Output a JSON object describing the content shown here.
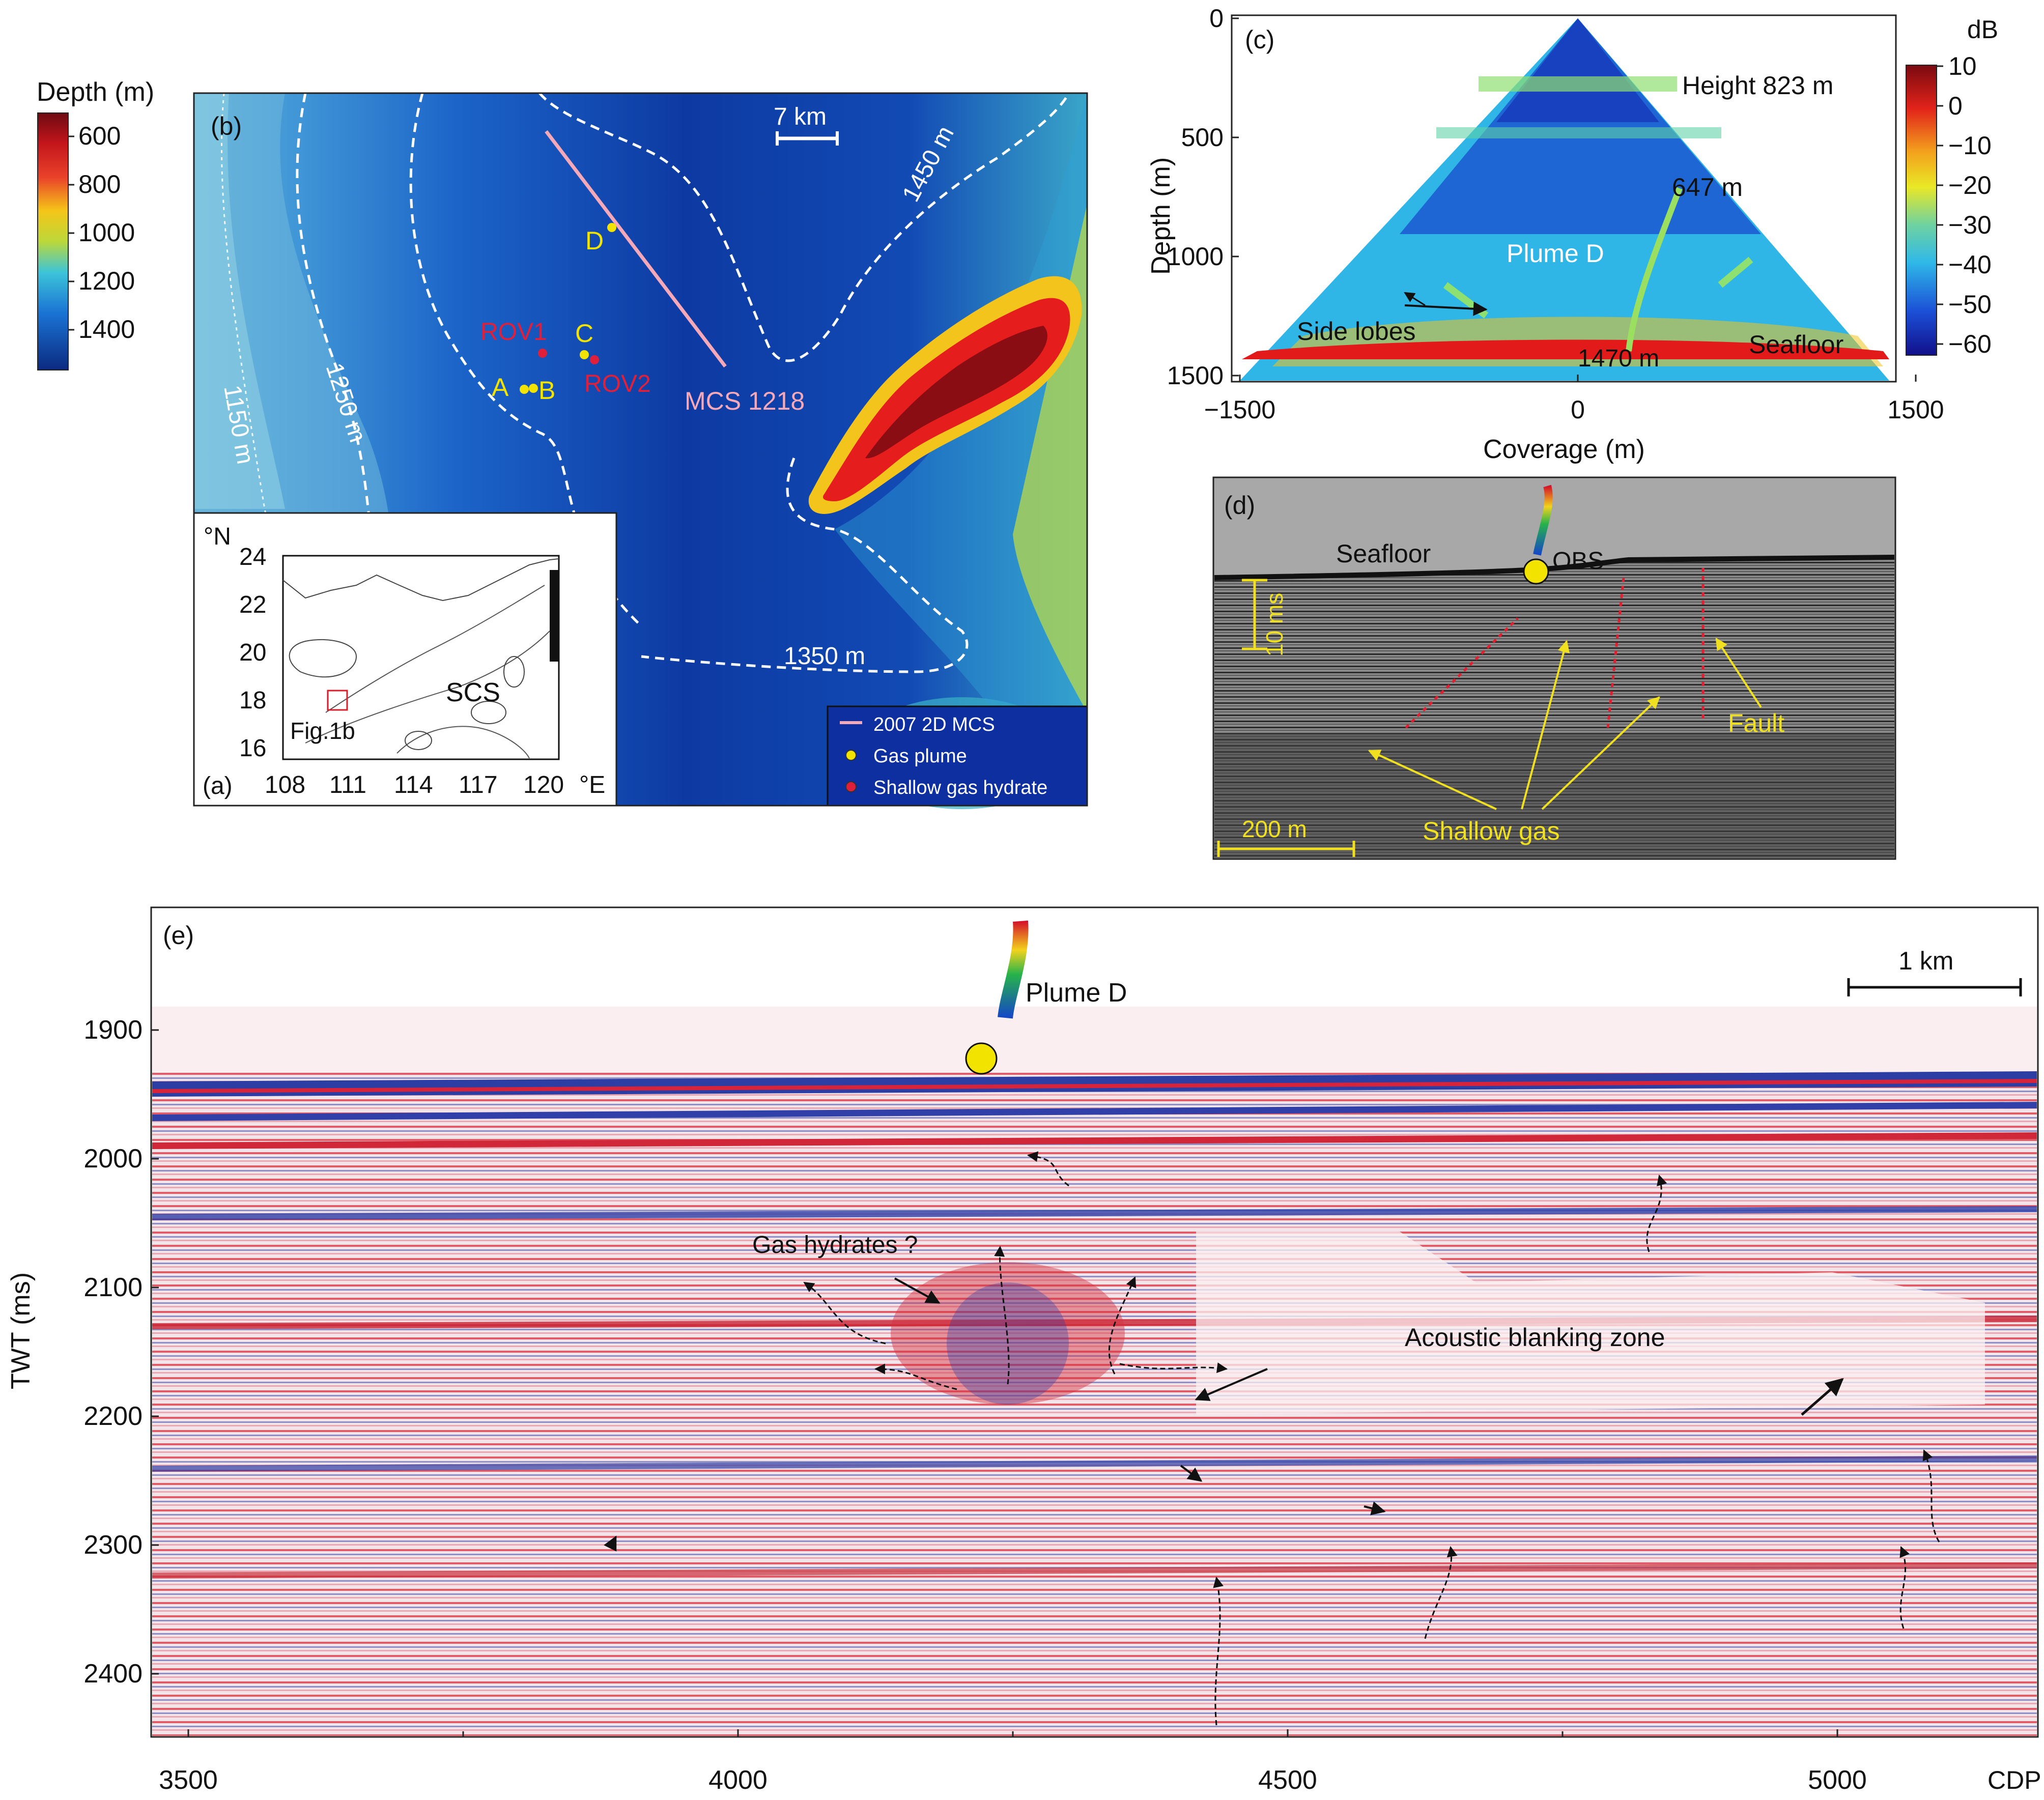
{
  "panel_b": {
    "colorbar": {
      "title": "Depth (m)",
      "ticks": [
        "600",
        "800",
        "1000",
        "1200",
        "1400"
      ]
    },
    "tag": "(b)",
    "scale_label": "7 km",
    "contours": [
      "1450 m",
      "1250 m",
      "1150 m",
      "1350 m"
    ],
    "sites": {
      "D": "D",
      "C": "C",
      "A": "A",
      "B": "B",
      "ROV1": "ROV1",
      "ROV2": "ROV2"
    },
    "line_label": "MCS 1218",
    "legend": [
      "2007 2D MCS",
      "Gas plume",
      "Shallow gas hydrate"
    ],
    "colors": {
      "deep": "#0b2f8c",
      "shallow": "#8a0d14",
      "plume": "#f2e400",
      "hydrate": "#e0203a",
      "mcs": "#f4a8b8"
    }
  },
  "panel_a": {
    "tag": "(a)",
    "lat_unit": "°N",
    "lon_unit": "°E",
    "lat_ticks": [
      "24",
      "22",
      "20",
      "18",
      "16"
    ],
    "lon_ticks": [
      "108",
      "111",
      "114",
      "117",
      "120"
    ],
    "sea_label": "SCS",
    "box_label": "Fig.1b"
  },
  "panel_c": {
    "tag": "(c)",
    "ylabel": "Depth (m)",
    "xlabel": "Coverage (m)",
    "y_ticks": [
      "0",
      "500",
      "1000",
      "1500"
    ],
    "x_ticks": [
      "−1500",
      "0",
      "1500"
    ],
    "colorbar_unit": "dB",
    "colorbar_ticks": [
      "10",
      "0",
      "−10",
      "−20",
      "−30",
      "−40",
      "−50",
      "−60"
    ],
    "labels": {
      "height": "Height 823 m",
      "top": "647 m",
      "plume": "Plume D",
      "side": "Side lobes",
      "bottom": "1470 m",
      "seafloor": "Seafloor"
    }
  },
  "panel_d": {
    "tag": "(d)",
    "labels": {
      "seafloor": "Seafloor",
      "obs": "OBS",
      "ms": "10 ms",
      "fault": "Fault",
      "gas": "Shallow gas",
      "scale": "200 m"
    }
  },
  "panel_e": {
    "tag": "(e)",
    "ylabel": "TWT (ms)",
    "y_ticks": [
      "1900",
      "2000",
      "2100",
      "2200",
      "2300",
      "2400"
    ],
    "x_ticks": [
      "3500",
      "4000",
      "4500",
      "5000"
    ],
    "x_unit": "CDP",
    "labels": {
      "plume": "Plume D",
      "scale": "1 km",
      "hydrates": "Gas hydrates ?",
      "blanking": "Acoustic blanking zone"
    }
  }
}
